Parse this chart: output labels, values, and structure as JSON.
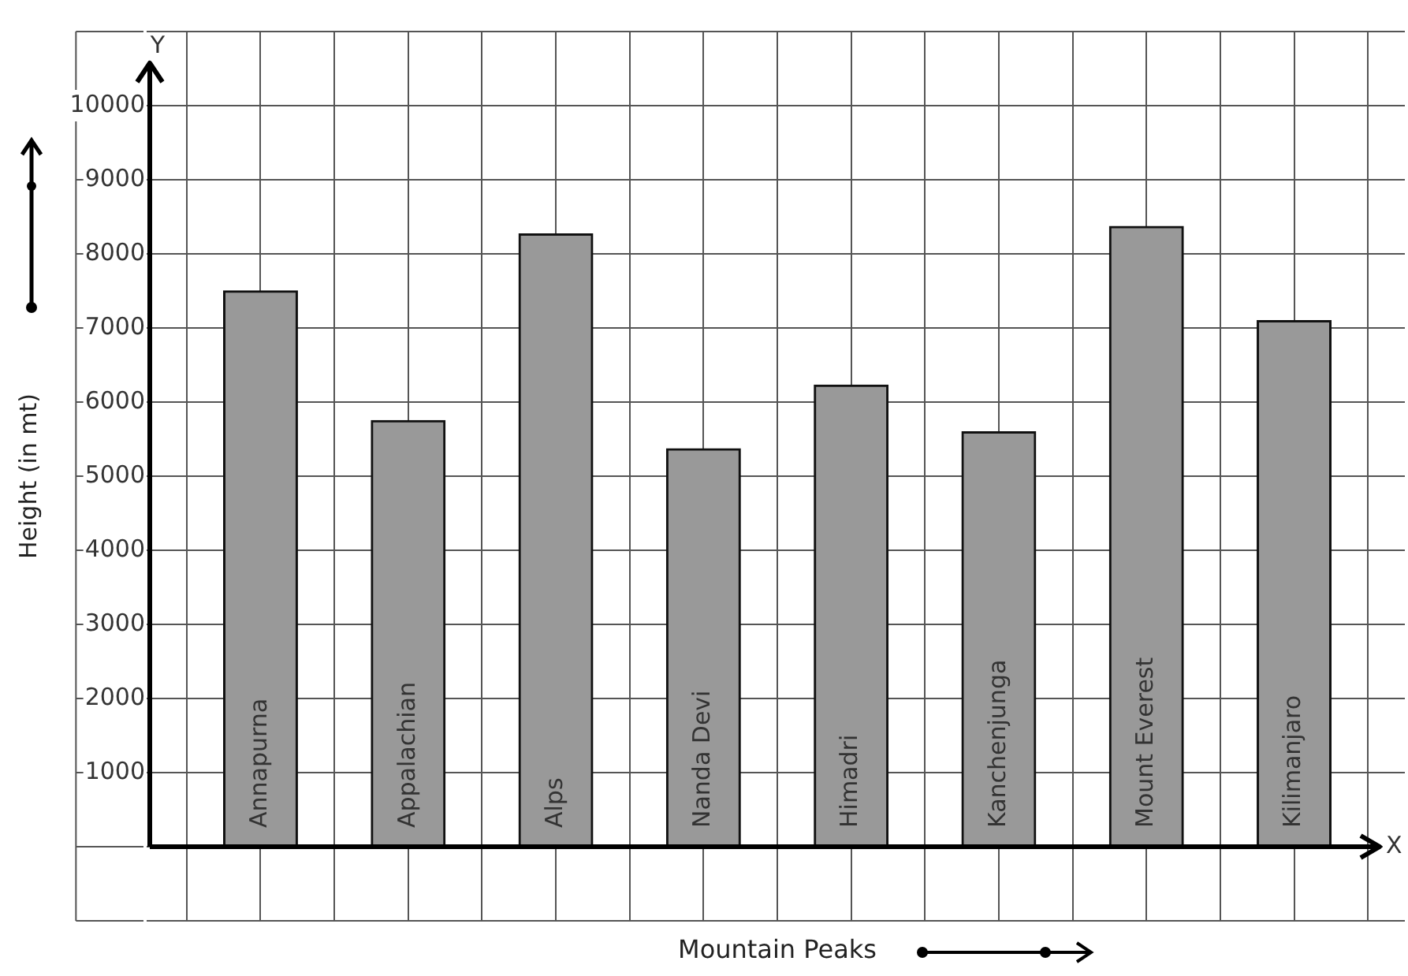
{
  "chart_data": {
    "type": "bar",
    "xlabel": "Mountain Peaks",
    "ylabel": "Height (in mt)",
    "categories": [
      "Annapurna",
      "Appalachian",
      "Alps",
      "Nanda Devi",
      "Himadri",
      "Kanchenjunga",
      "Mount Everest",
      "Kilimanjaro"
    ],
    "values": [
      7500,
      5750,
      8270,
      5370,
      6230,
      5600,
      8370,
      7100
    ],
    "color": "#999999",
    "ylim": [
      -1000,
      11000
    ],
    "yticks": [
      {
        "value": -1000,
        "label": null
      },
      {
        "value": 0,
        "label": null
      },
      1000,
      2000,
      3000,
      4000,
      5000,
      6000,
      7000,
      8000,
      9000,
      10000,
      {
        "value": 11000,
        "label": null
      }
    ],
    "grid": true,
    "annotations": [
      "Y",
      "X"
    ]
  }
}
